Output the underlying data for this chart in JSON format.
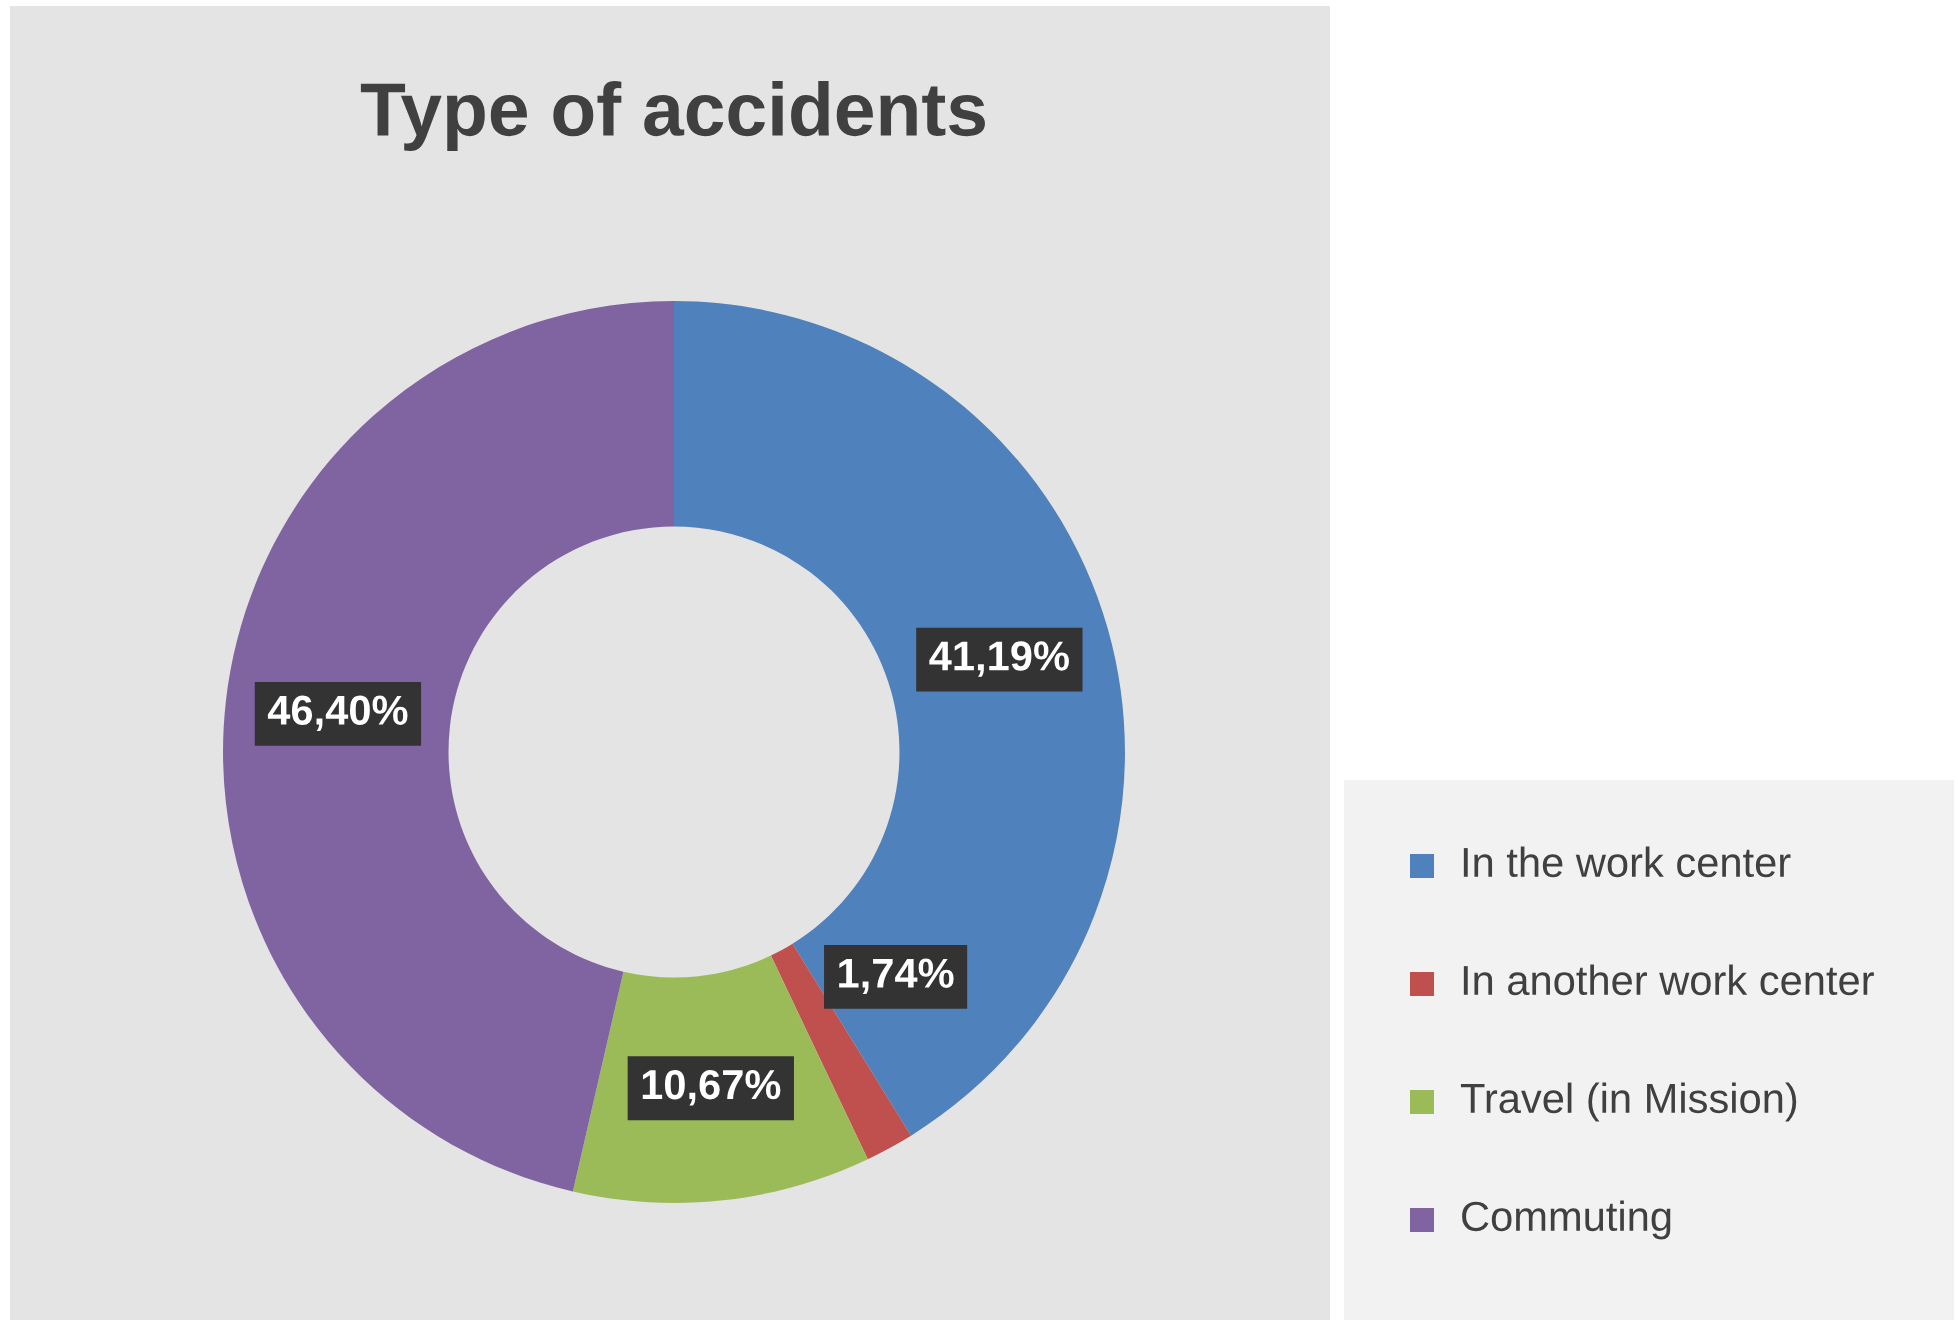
{
  "chart_data": {
    "type": "donut",
    "title": "Type of accidents",
    "categories": [
      "In the work center",
      "In another work center",
      "Travel (in Mission)",
      "Commuting"
    ],
    "values": [
      41.19,
      1.74,
      10.67,
      46.4
    ],
    "colors": [
      "#4f81bd",
      "#c0504d",
      "#9bbb59",
      "#8064a2"
    ],
    "value_labels": [
      "41,19%",
      "1,74%",
      "10,67%",
      "46,40%"
    ],
    "legend": "right"
  }
}
